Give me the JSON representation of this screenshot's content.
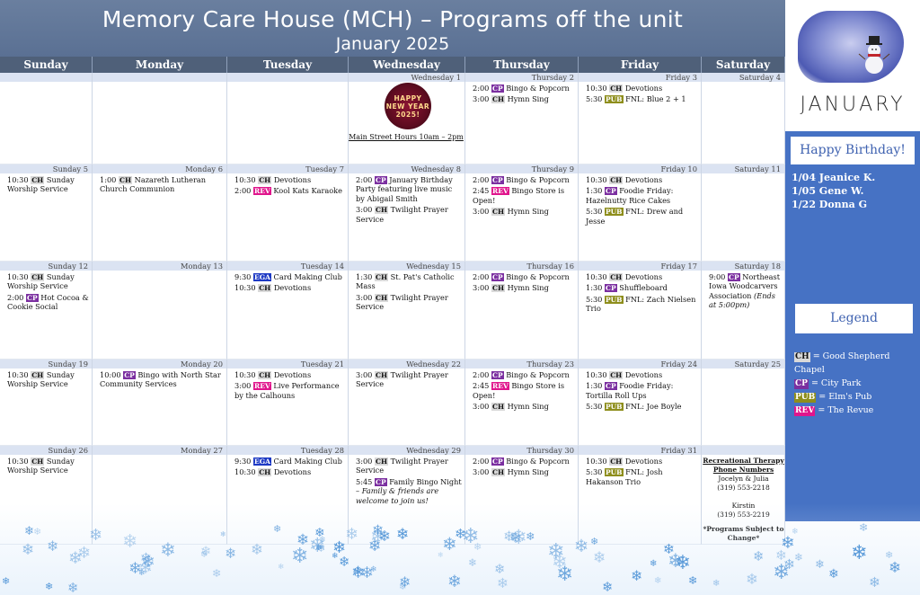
{
  "header": {
    "title": "Memory Care House (MCH) – Programs off the unit",
    "subtitle": "January 2025"
  },
  "days": [
    "Sunday",
    "Monday",
    "Tuesday",
    "Wednesday",
    "Thursday",
    "Friday",
    "Saturday"
  ],
  "weeks": [
    [
      {
        "date": "",
        "events": []
      },
      {
        "date": "",
        "events": []
      },
      {
        "date": "",
        "events": []
      },
      {
        "date": "Wednesday 1",
        "events": []
      },
      {
        "date": "Thursday 2",
        "events": [
          {
            "time": "2:00",
            "tag": "CP",
            "text": "Bingo & Popcorn"
          },
          {
            "time": "3:00",
            "tag": "CH",
            "text": "Hymn Sing"
          }
        ]
      },
      {
        "date": "Friday 3",
        "events": [
          {
            "time": "10:30",
            "tag": "CH",
            "text": "Devotions"
          },
          {
            "time": "5:30",
            "tag": "PUB",
            "text": "FNL: Blue 2 + 1"
          }
        ]
      },
      {
        "date": "Saturday 4",
        "events": []
      }
    ],
    [
      {
        "date": "Sunday 5",
        "events": [
          {
            "time": "10:30",
            "tag": "CH",
            "text": "Sunday Worship Service"
          }
        ]
      },
      {
        "date": "Monday 6",
        "events": [
          {
            "time": "1:00",
            "tag": "CH",
            "text": "Nazareth Lutheran Church Communion"
          }
        ]
      },
      {
        "date": "Tuesday 7",
        "events": [
          {
            "time": "10:30",
            "tag": "CH",
            "text": "Devotions"
          },
          {
            "time": "2:00",
            "tag": "REV",
            "text": "Kool Kats Karaoke"
          }
        ]
      },
      {
        "date": "Wednesday 8",
        "events": [
          {
            "time": "2:00",
            "tag": "CP",
            "text": "January Birthday Party featuring live music by Abigail Smith"
          },
          {
            "time": "3:00",
            "tag": "CH",
            "text": "Twilight Prayer Service"
          }
        ]
      },
      {
        "date": "Thursday 9",
        "events": [
          {
            "time": "2:00",
            "tag": "CP",
            "text": "Bingo & Popcorn"
          },
          {
            "time": "2:45",
            "tag": "REV",
            "text": "Bingo Store is Open!"
          },
          {
            "time": "3:00",
            "tag": "CH",
            "text": "Hymn Sing"
          }
        ]
      },
      {
        "date": "Friday 10",
        "events": [
          {
            "time": "10:30",
            "tag": "CH",
            "text": "Devotions"
          },
          {
            "time": "1:30",
            "tag": "CP",
            "text": "Foodie Friday: Hazelnutty Rice Cakes"
          },
          {
            "time": "5:30",
            "tag": "PUB",
            "text": "FNL: Drew and Jesse"
          }
        ]
      },
      {
        "date": "Saturday 11",
        "events": []
      }
    ],
    [
      {
        "date": "Sunday 12",
        "events": [
          {
            "time": "10:30",
            "tag": "CH",
            "text": "Sunday Worship Service"
          },
          {
            "time": "2:00",
            "tag": "CP",
            "text": "Hot Cocoa & Cookie Social"
          }
        ]
      },
      {
        "date": "Monday 13",
        "events": []
      },
      {
        "date": "Tuesday 14",
        "events": [
          {
            "time": "9:30",
            "tag": "EGA",
            "text": "Card Making Club"
          },
          {
            "time": "10:30",
            "tag": "CH",
            "text": "Devotions"
          }
        ]
      },
      {
        "date": "Wednesday 15",
        "events": [
          {
            "time": "1:30",
            "tag": "CH",
            "text": "St. Pat's Catholic Mass"
          },
          {
            "time": "3:00",
            "tag": "CH",
            "text": "Twilight Prayer Service"
          }
        ]
      },
      {
        "date": "Thursday 16",
        "events": [
          {
            "time": "2:00",
            "tag": "CP",
            "text": "Bingo & Popcorn"
          },
          {
            "time": "3:00",
            "tag": "CH",
            "text": "Hymn Sing"
          }
        ]
      },
      {
        "date": "Friday 17",
        "events": [
          {
            "time": "10:30",
            "tag": "CH",
            "text": "Devotions"
          },
          {
            "time": "1:30",
            "tag": "CP",
            "text": "Shuffleboard"
          },
          {
            "time": "5:30",
            "tag": "PUB",
            "text": "FNL: Zach Nielsen Trio"
          }
        ]
      },
      {
        "date": "Saturday 18",
        "events": [
          {
            "time": "9:00",
            "tag": "CP",
            "text": "Northeast Iowa Woodcarvers Association",
            "note": "(Ends at 5:00pm)"
          }
        ]
      }
    ],
    [
      {
        "date": "Sunday 19",
        "events": [
          {
            "time": "10:30",
            "tag": "CH",
            "text": "Sunday Worship Service"
          }
        ]
      },
      {
        "date": "Monday 20",
        "events": [
          {
            "time": "10:00",
            "tag": "CP",
            "text": "Bingo with North Star Community Services"
          }
        ]
      },
      {
        "date": "Tuesday 21",
        "events": [
          {
            "time": "10:30",
            "tag": "CH",
            "text": "Devotions"
          },
          {
            "time": "3:00",
            "tag": "REV",
            "text": "Live Performance by the Calhouns"
          }
        ]
      },
      {
        "date": "Wednesday 22",
        "events": [
          {
            "time": "3:00",
            "tag": "CH",
            "text": "Twilight Prayer Service"
          }
        ]
      },
      {
        "date": "Thursday 23",
        "events": [
          {
            "time": "2:00",
            "tag": "CP",
            "text": "Bingo & Popcorn"
          },
          {
            "time": "2:45",
            "tag": "REV",
            "text": "Bingo Store is Open!"
          },
          {
            "time": "3:00",
            "tag": "CH",
            "text": "Hymn Sing"
          }
        ]
      },
      {
        "date": "Friday 24",
        "events": [
          {
            "time": "10:30",
            "tag": "CH",
            "text": "Devotions"
          },
          {
            "time": "1:30",
            "tag": "CP",
            "text": "Foodie Friday: Tortilla Roll Ups"
          },
          {
            "time": "5:30",
            "tag": "PUB",
            "text": "FNL: Joe Boyle"
          }
        ]
      },
      {
        "date": "Saturday 25",
        "events": []
      }
    ],
    [
      {
        "date": "Sunday 26",
        "events": [
          {
            "time": "10:30",
            "tag": "CH",
            "text": "Sunday Worship Service"
          }
        ]
      },
      {
        "date": "Monday 27",
        "events": []
      },
      {
        "date": "Tuesday 28",
        "events": [
          {
            "time": "9:30",
            "tag": "EGA",
            "text": "Card Making Club"
          },
          {
            "time": "10:30",
            "tag": "CH",
            "text": "Devotions"
          }
        ]
      },
      {
        "date": "Wednesday 29",
        "events": [
          {
            "time": "3:00",
            "tag": "CH",
            "text": "Twilight Prayer Service"
          },
          {
            "time": "5:45",
            "tag": "CP",
            "text": "Family Bingo Night –",
            "note": "Family & friends are welcome to join us!"
          }
        ]
      },
      {
        "date": "Thursday 30",
        "events": [
          {
            "time": "2:00",
            "tag": "CP",
            "text": "Bingo & Popcorn"
          },
          {
            "time": "3:00",
            "tag": "CH",
            "text": "Hymn Sing"
          }
        ]
      },
      {
        "date": "Friday 31",
        "events": [
          {
            "time": "10:30",
            "tag": "CH",
            "text": "Devotions"
          },
          {
            "time": "5:30",
            "tag": "PUB",
            "text": "FNL: Josh Hakanson Trio"
          }
        ]
      },
      {
        "date": "",
        "events": []
      }
    ]
  ],
  "tag_labels": {
    "CH": "CH",
    "CP": "CP",
    "PUB": "PUB",
    "REV": "REV",
    "EGA": "EGA"
  },
  "new_year_badge": {
    "line1": "HAPPY",
    "line2": "NEW YEAR",
    "line3": "2025!"
  },
  "main_street_hours": "Main Street Hours 10am – 2pm",
  "contacts": {
    "heading": "Recreational Therapy Phone Numbers",
    "person1": "Jocelyn & Julia",
    "phone1": "(319) 553-2218",
    "person2": "Kirstin",
    "phone2": "(319) 553-2219",
    "note": "*Programs Subject to Change*"
  },
  "sidebar": {
    "month": "JANUARY",
    "birthday_title": "Happy Birthday!",
    "birthdays": [
      "1/04 Jeanice K.",
      "1/05 Gene W.",
      "1/22 Donna G"
    ],
    "legend_title": "Legend",
    "legend": [
      {
        "tag": "CH",
        "text": "= Good Shepherd Chapel"
      },
      {
        "tag": "CP",
        "text": "= City Park"
      },
      {
        "tag": "PUB",
        "text": "= Elm's Pub"
      },
      {
        "tag": "REV",
        "text": "= The Revue"
      }
    ]
  },
  "colors": {
    "header_bg": "#5a7093",
    "sidebar_bg": "#4672c4",
    "CH": "#d9d9d9",
    "CP": "#7b2fa0",
    "PUB": "#8e8e1c",
    "REV": "#e0158c",
    "EGA": "#1d39c4"
  }
}
